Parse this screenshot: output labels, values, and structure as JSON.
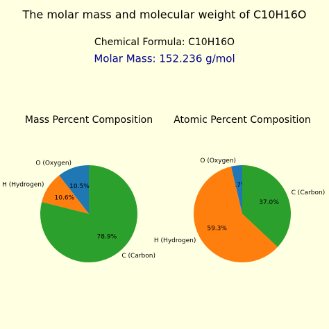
{
  "title": "The molar mass and molecular weight of C10H16O",
  "formula_line": "Chemical Formula: C10H16O",
  "molar_mass_line": "Molar Mass: 152.236 g/mol",
  "chart_data": [
    {
      "type": "pie",
      "title": "Mass Percent Composition",
      "categories": [
        "O (Oxygen)",
        "H (Hydrogen)",
        "C (Carbon)"
      ],
      "values": [
        10.5,
        10.6,
        78.9
      ],
      "value_labels": [
        "10.5%",
        "10.6%",
        "78.9%"
      ],
      "colors": [
        "#1f77b4",
        "#ff7f0e",
        "#2ca02c"
      ]
    },
    {
      "type": "pie",
      "title": "Atomic Percent Composition",
      "categories": [
        "O (Oxygen)",
        "H (Hydrogen)",
        "C (Carbon)"
      ],
      "values": [
        3.7,
        59.3,
        37.0
      ],
      "value_labels": [
        "3.7%",
        "59.3%",
        "37.0%"
      ],
      "colors": [
        "#1f77b4",
        "#ff7f0e",
        "#2ca02c"
      ]
    }
  ]
}
